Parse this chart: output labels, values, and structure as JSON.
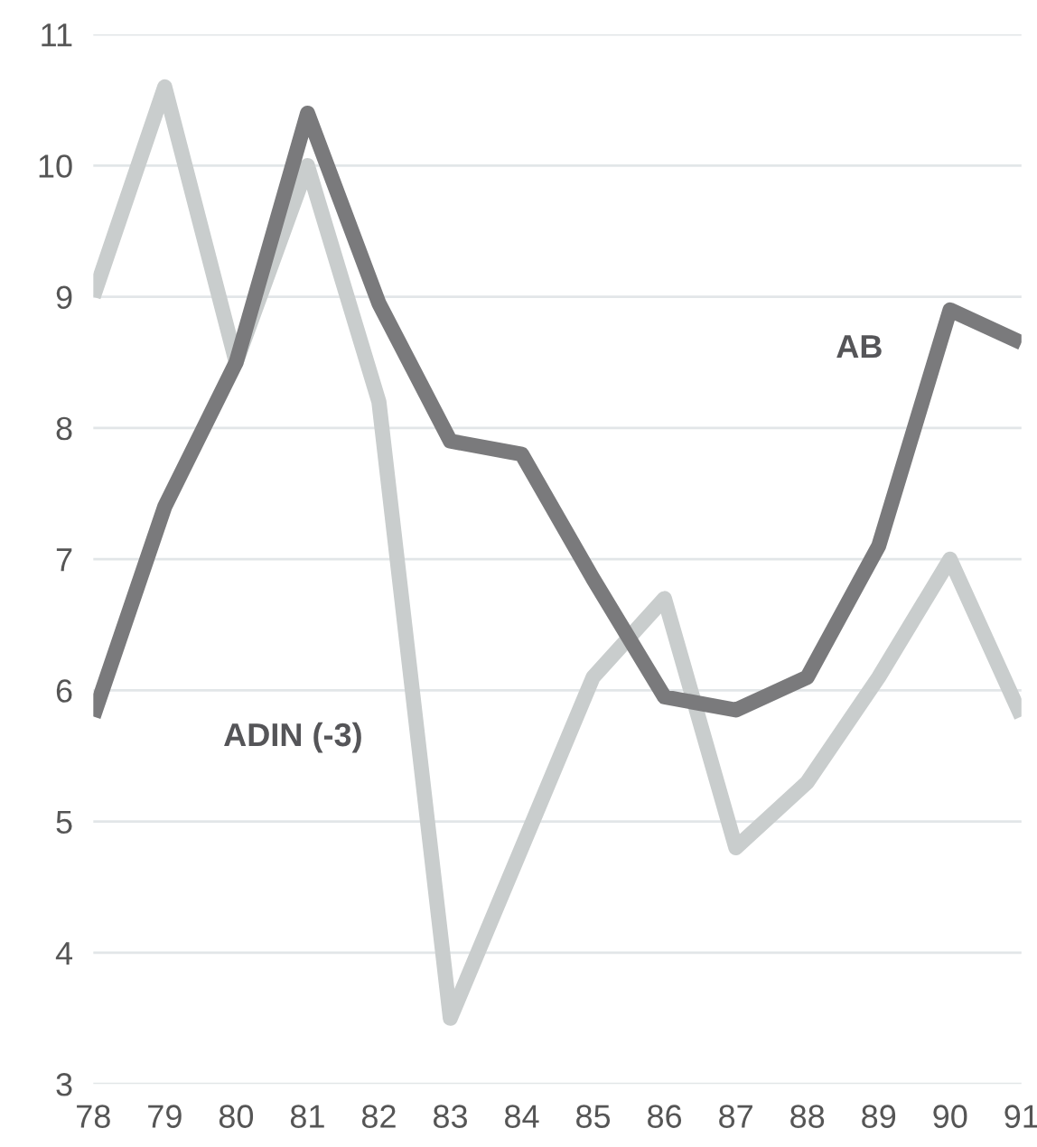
{
  "chart_data": {
    "type": "line",
    "x": [
      78,
      79,
      80,
      81,
      82,
      83,
      84,
      85,
      86,
      87,
      88,
      89,
      90,
      91
    ],
    "series": [
      {
        "name": "ADIN (-3)",
        "color": "#c9cdcd",
        "values": [
          9.0,
          10.6,
          8.5,
          10.0,
          8.2,
          3.5,
          4.8,
          6.1,
          6.7,
          4.8,
          5.3,
          6.1,
          7.0,
          5.8
        ]
      },
      {
        "name": "AB",
        "color": "#7a7a7c",
        "values": [
          5.8,
          7.4,
          8.5,
          10.4,
          8.95,
          7.9,
          7.8,
          6.85,
          5.95,
          5.85,
          6.1,
          7.1,
          8.9,
          8.65
        ]
      }
    ],
    "xlim": [
      78,
      91
    ],
    "xticks": [
      78,
      79,
      80,
      81,
      82,
      83,
      84,
      85,
      86,
      87,
      88,
      89,
      90,
      91
    ],
    "ylim": [
      3,
      11
    ],
    "yticks": [
      3,
      4,
      5,
      6,
      7,
      8,
      9,
      10,
      11
    ],
    "grid": "y",
    "line_style": "solid"
  }
}
